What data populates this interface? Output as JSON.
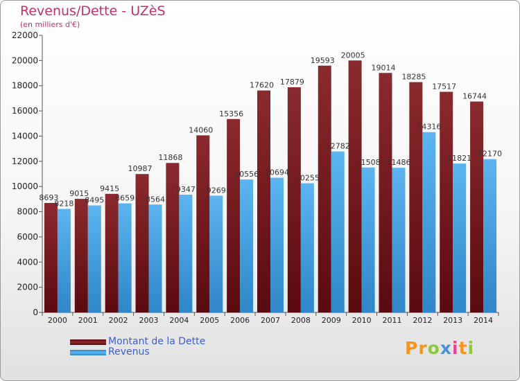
{
  "title": "Revenus/Dette - UZèS",
  "subtitle": "(en milliers d'€)",
  "colors": {
    "dette": "#7a1a1f",
    "revenus": "#4aa6e8",
    "title": "#c0306a",
    "legend_text": "#3b5fd0"
  },
  "logo": {
    "letters": [
      "P",
      "r",
      "o",
      "x",
      "i",
      "t",
      "i"
    ],
    "colors": [
      "#f7941e",
      "#f7941e",
      "#8dc63f",
      "#4a90d9",
      "#e84393",
      "#f7941e",
      "#8dc63f"
    ]
  },
  "chart_data": {
    "type": "bar",
    "categories": [
      "2000",
      "2001",
      "2002",
      "2003",
      "2004",
      "2005",
      "2006",
      "2007",
      "2008",
      "2009",
      "2010",
      "2011",
      "2012",
      "2013",
      "2014"
    ],
    "series": [
      {
        "name": "Montant de la Dette",
        "values": [
          8693,
          9015,
          9415,
          10987,
          11868,
          14060,
          15356,
          17620,
          17879,
          19593,
          20005,
          19014,
          18285,
          17517,
          16744
        ]
      },
      {
        "name": "Revenus",
        "values": [
          8218,
          8495,
          8659,
          8564,
          9347,
          9269,
          10556,
          10694,
          10255,
          12782,
          11508,
          11486,
          14316,
          11821,
          12170
        ]
      }
    ],
    "ylim": [
      0,
      22000
    ],
    "yticks": [
      0,
      2000,
      4000,
      6000,
      8000,
      10000,
      12000,
      14000,
      16000,
      18000,
      20000,
      22000
    ],
    "grid": false,
    "legend": "bottom-left"
  }
}
